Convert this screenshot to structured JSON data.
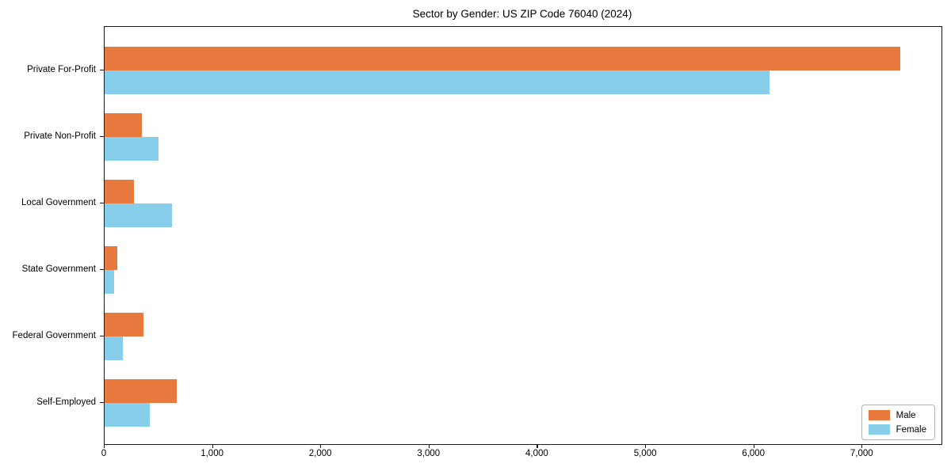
{
  "chart_data": {
    "type": "bar",
    "orientation": "horizontal",
    "title": "Sector by Gender: US ZIP Code 76040 (2024)",
    "categories": [
      "Private For-Profit",
      "Private Non-Profit",
      "Local Government",
      "State Government",
      "Federal Government",
      "Self-Employed"
    ],
    "series": [
      {
        "name": "Male",
        "color": "#e8793e",
        "values": [
          7350,
          345,
          270,
          115,
          360,
          665
        ]
      },
      {
        "name": "Female",
        "color": "#87ceeb",
        "values": [
          6140,
          500,
          620,
          90,
          170,
          420
        ]
      }
    ],
    "xlabel": "",
    "ylabel": "",
    "xlim": [
      0,
      7730
    ],
    "x_ticks": [
      0,
      1000,
      2000,
      3000,
      4000,
      5000,
      6000,
      7000
    ],
    "x_tick_labels": [
      "0",
      "1,000",
      "2,000",
      "3,000",
      "4,000",
      "5,000",
      "6,000",
      "7,000"
    ],
    "grid": false,
    "legend": {
      "position": "lower right",
      "items": [
        {
          "label": "Male",
          "color": "#e8793e"
        },
        {
          "label": "Female",
          "color": "#87ceeb"
        }
      ]
    }
  }
}
